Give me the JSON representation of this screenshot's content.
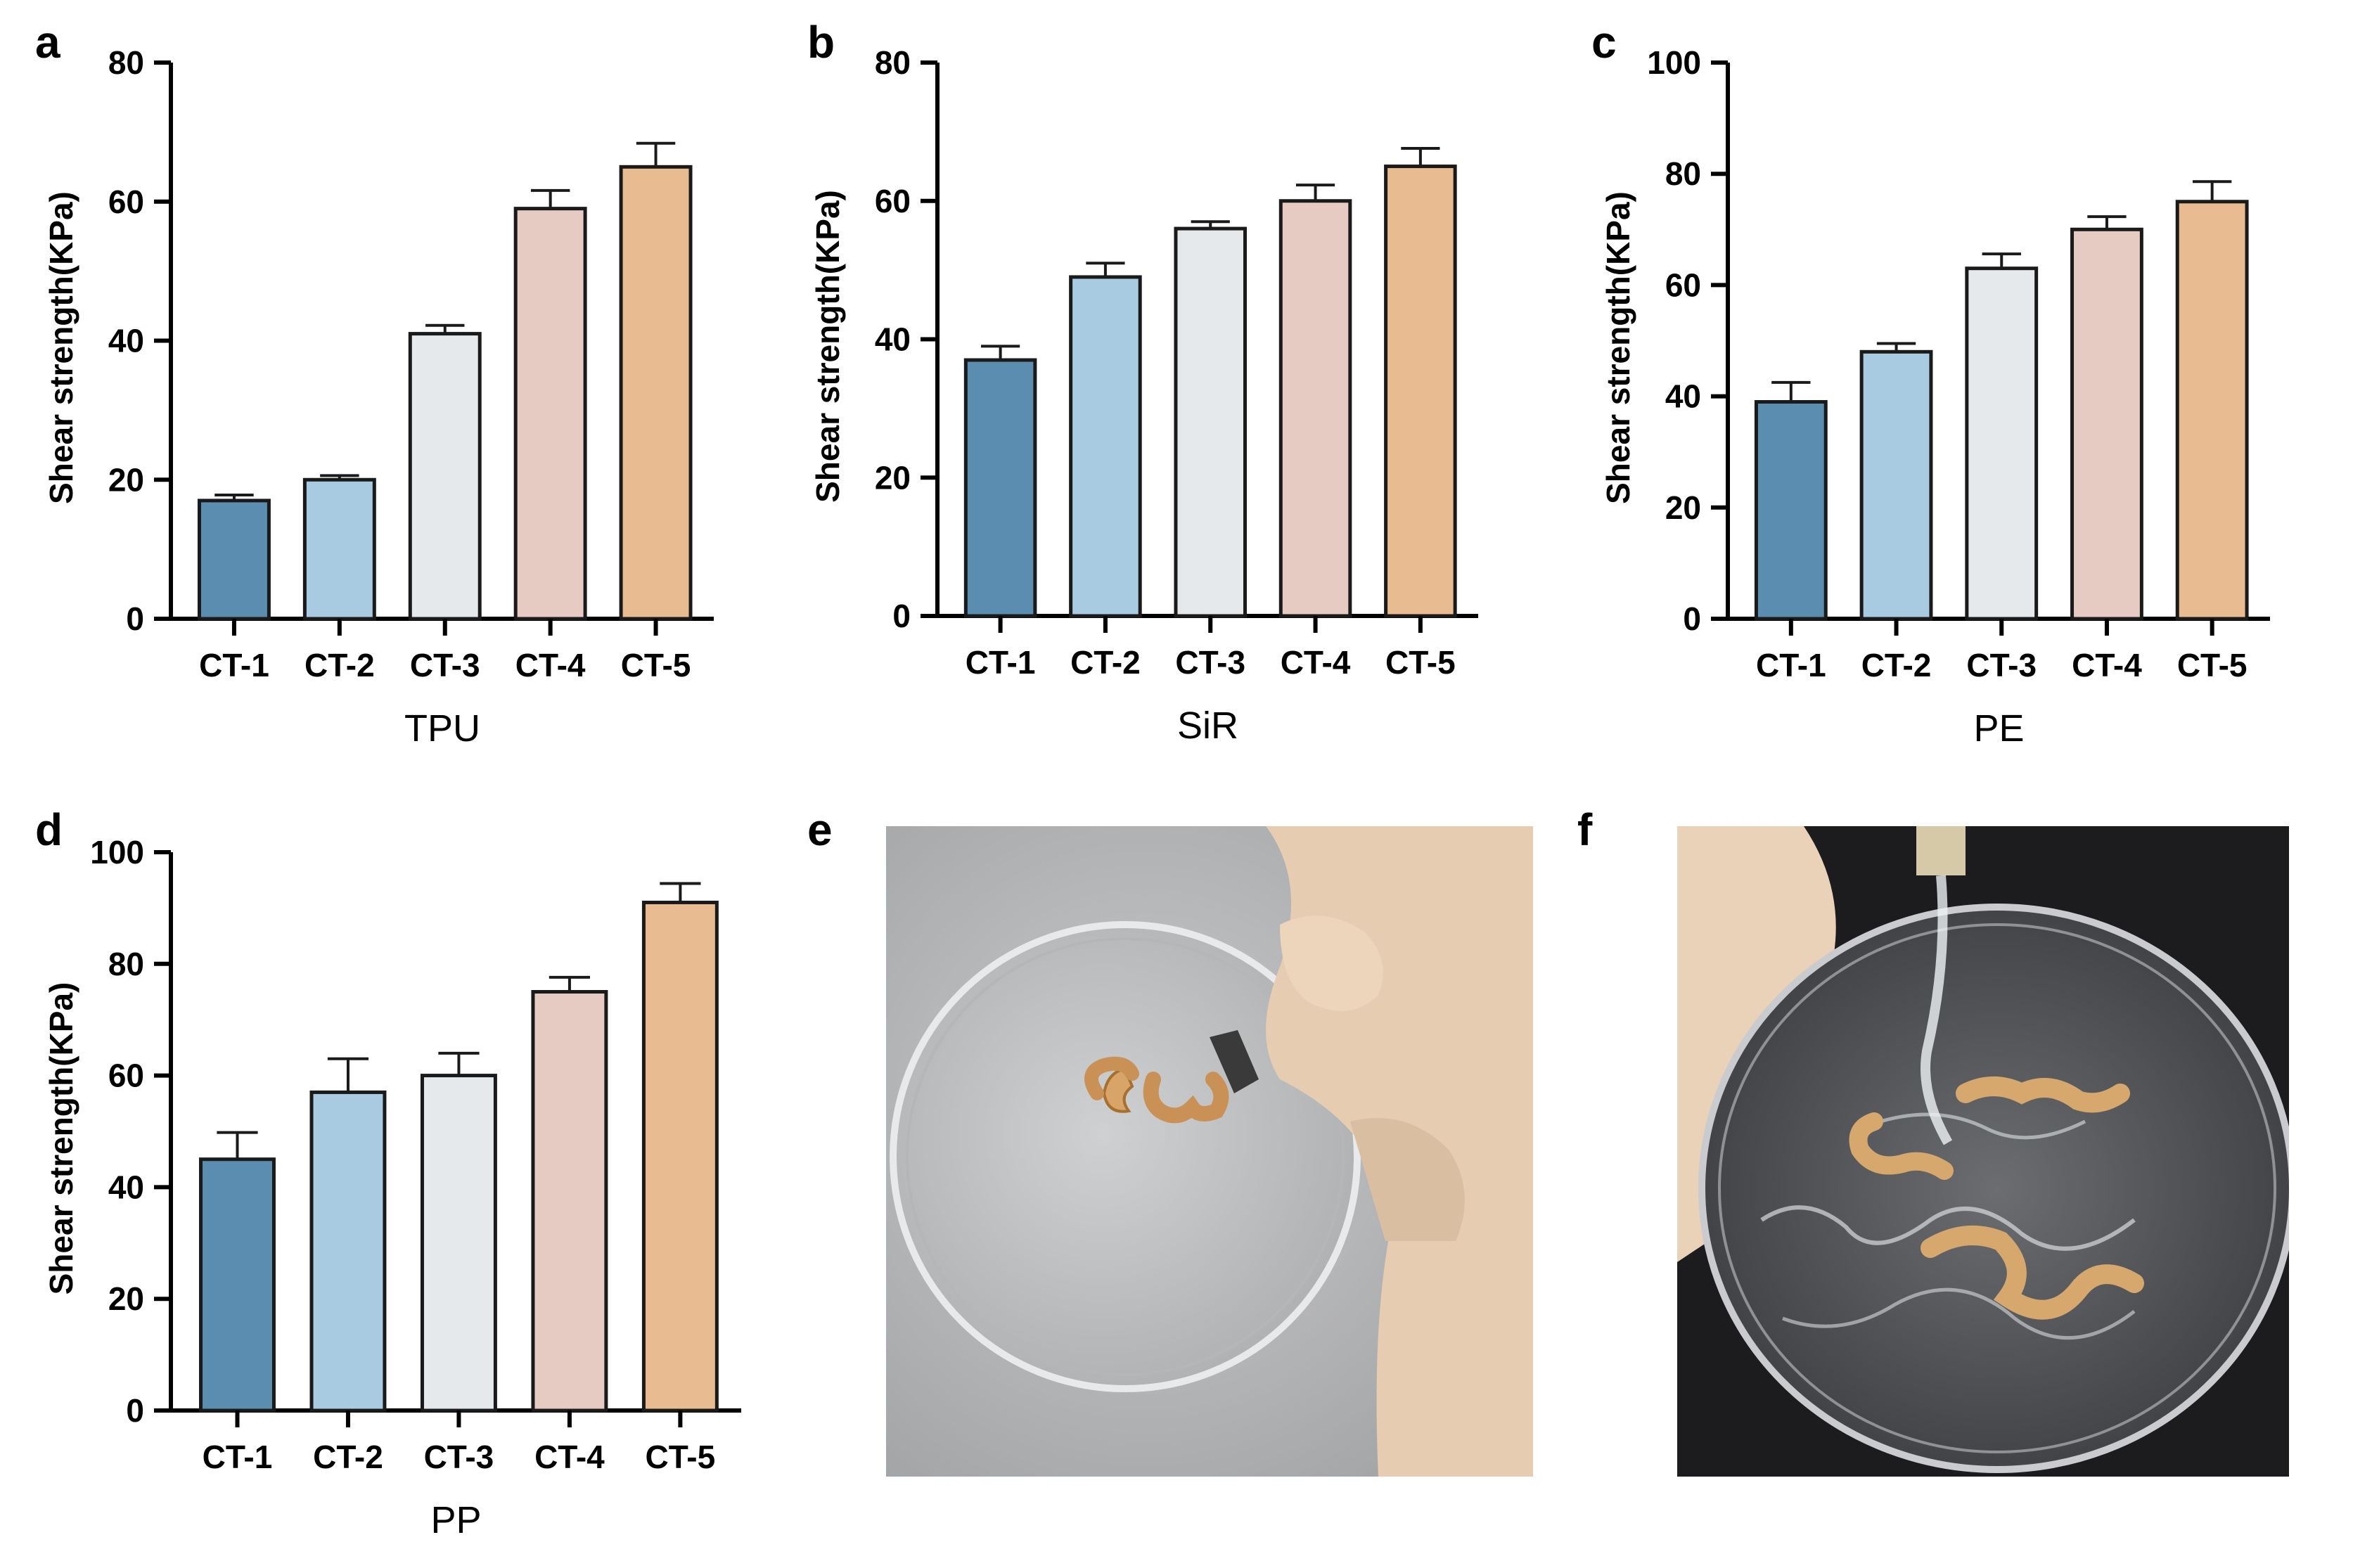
{
  "figure": {
    "panel_letters": [
      "a",
      "b",
      "c",
      "d",
      "e",
      "f"
    ],
    "colors": {
      "CT-1": "#5b8db1",
      "CT-2": "#a9cbe1",
      "CT-3": "#e6e9ec",
      "CT-4": "#e6cbc2",
      "CT-5": "#e9bb90",
      "axis": "#000000"
    }
  },
  "chart_data": [
    {
      "type": "bar",
      "panel": "a",
      "title": "",
      "xlabel": "TPU",
      "ylabel": "Shear strength(KPa)",
      "categories": [
        "CT-1",
        "CT-2",
        "CT-3",
        "CT-4",
        "CT-5"
      ],
      "values": [
        17,
        20,
        41,
        59,
        65
      ],
      "errors": [
        0.8,
        0.6,
        1.2,
        2.6,
        3.4
      ],
      "ylim": [
        0,
        80
      ],
      "yticks": [
        0,
        20,
        40,
        60,
        80
      ],
      "legend": "none"
    },
    {
      "type": "bar",
      "panel": "b",
      "title": "",
      "xlabel": "SiR",
      "ylabel": "Shear strength(KPa)",
      "categories": [
        "CT-1",
        "CT-2",
        "CT-3",
        "CT-4",
        "CT-5"
      ],
      "values": [
        37,
        49,
        56,
        60,
        65
      ],
      "errors": [
        2.0,
        2.0,
        1.0,
        2.3,
        2.6
      ],
      "ylim": [
        0,
        80
      ],
      "yticks": [
        0,
        20,
        40,
        60,
        80
      ],
      "legend": "none"
    },
    {
      "type": "bar",
      "panel": "c",
      "title": "",
      "xlabel": "PE",
      "ylabel": "Shear strength(KPa)",
      "categories": [
        "CT-1",
        "CT-2",
        "CT-3",
        "CT-4",
        "CT-5"
      ],
      "values": [
        39,
        48,
        63,
        70,
        75
      ],
      "errors": [
        3.5,
        1.5,
        2.6,
        2.3,
        3.6
      ],
      "ylim": [
        0,
        100
      ],
      "yticks": [
        0,
        20,
        40,
        60,
        80,
        100
      ],
      "legend": "none"
    },
    {
      "type": "bar",
      "panel": "d",
      "title": "",
      "xlabel": "PP",
      "ylabel": "Shear strength(KPa)",
      "categories": [
        "CT-1",
        "CT-2",
        "CT-3",
        "CT-4",
        "CT-5"
      ],
      "values": [
        45,
        57,
        60,
        75,
        91
      ],
      "errors": [
        4.8,
        6.0,
        4.0,
        2.6,
        3.4
      ],
      "ylim": [
        0,
        100
      ],
      "yticks": [
        0,
        20,
        40,
        60,
        80,
        100
      ],
      "legend": "none"
    }
  ]
}
